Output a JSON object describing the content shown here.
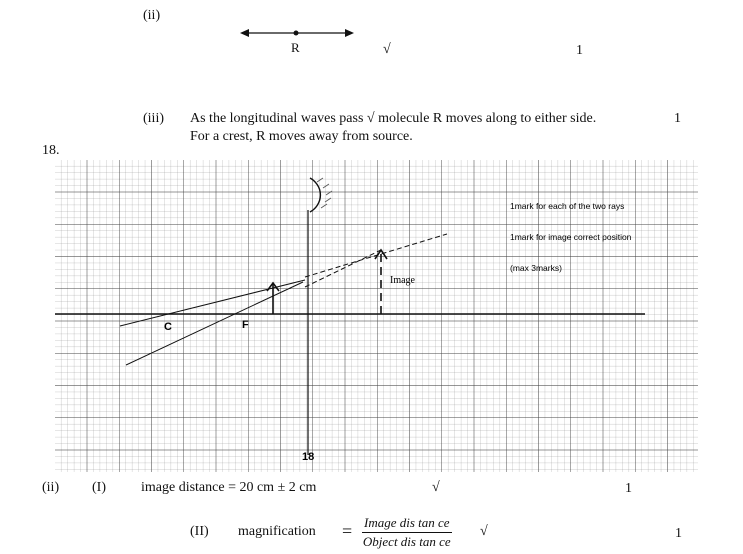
{
  "q17": {
    "part_ii_label": "(ii)",
    "molecule_label": "R",
    "check": "√",
    "mark": "1",
    "part_iii_label": "(iii)",
    "part_iii_line1": "As the longitudinal waves pass √ molecule R moves along to either side.",
    "part_iii_mark": "1",
    "part_iii_line2": "For a crest, R moves away from source."
  },
  "q18": {
    "number": "18.",
    "diagram": {
      "label_c": "C",
      "label_f": "F",
      "image_label": "Image",
      "notes": [
        "1mark for each of  the two rays",
        "1mark for image correct position",
        "(max 3marks)"
      ],
      "page_number": "18"
    },
    "part_ii_label": "(ii)",
    "part_I_label": "(I)",
    "part_I_text": "image distance = 20 cm ± 2 cm",
    "part_I_check": "√",
    "part_I_mark": "1",
    "part_II_label": "(II)",
    "part_II_text": "magnification",
    "equals": "=",
    "numerator": "Image dis tan ce",
    "denominator": "Object dis tan ce",
    "part_II_check": "√",
    "part_II_mark": "1"
  }
}
